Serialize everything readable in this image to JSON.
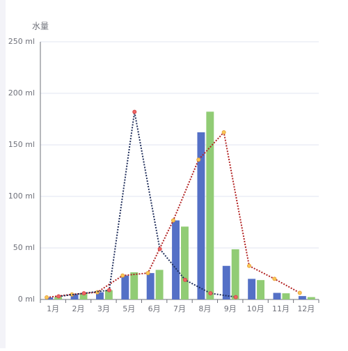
{
  "chart_data": {
    "type": "bar",
    "y_axis_name": "水量",
    "categories": [
      "1月",
      "2月",
      "3月",
      "5月",
      "6月",
      "7月",
      "8月",
      "9月",
      "10月",
      "11月",
      "12月"
    ],
    "series": [
      {
        "color": "#5470c6",
        "values": [
          2.0,
          4.9,
          7.0,
          23.2,
          25.6,
          76.7,
          162.2,
          32.6,
          20.0,
          6.4,
          3.3
        ]
      },
      {
        "color": "#91cc75",
        "values": [
          2.6,
          5.9,
          9.0,
          26.4,
          28.7,
          70.7,
          182.2,
          48.7,
          18.8,
          6.0,
          2.3
        ]
      },
      {
        "type": "line",
        "color": "#b22222",
        "marker_color": "#fac858",
        "values": [
          2.0,
          4.9,
          7.0,
          23.2,
          25.6,
          76.7,
          135.6,
          162.2,
          32.6,
          20.0,
          6.4
        ]
      },
      {
        "type": "line",
        "color": "#1f2d5a",
        "marker_color": "#ee6666",
        "values": [
          3.0,
          6.0,
          9.0,
          182.0,
          49.0,
          19.0,
          6.0,
          2.3,
          null,
          null,
          null
        ]
      }
    ],
    "ylim": [
      0,
      250
    ],
    "yticks": [
      {
        "value": 0,
        "label": "0 ml"
      },
      {
        "value": 50,
        "label": "50 ml"
      },
      {
        "value": 100,
        "label": "100 ml"
      },
      {
        "value": 150,
        "label": "150 ml"
      },
      {
        "value": 200,
        "label": "200 ml"
      },
      {
        "value": 250,
        "label": "250 ml"
      }
    ],
    "grid": true
  }
}
